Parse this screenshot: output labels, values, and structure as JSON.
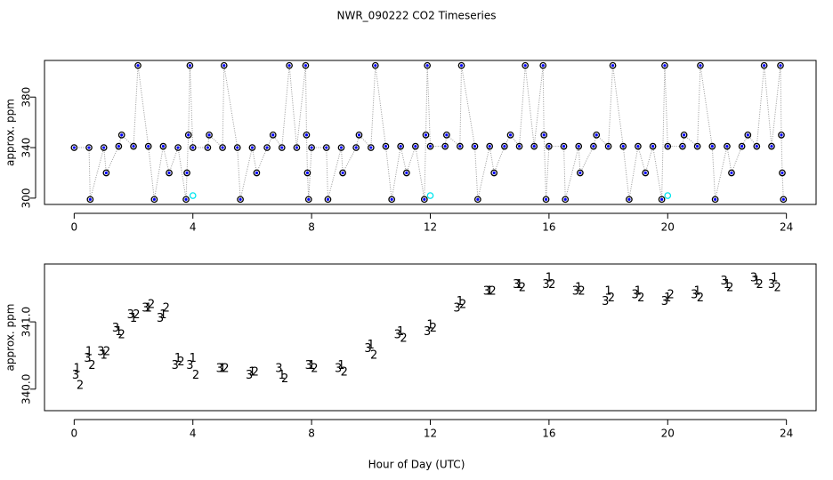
{
  "chart_data": [
    {
      "type": "scatter",
      "title": "NWR_090222  CO2 Timeseries",
      "ylabel": "approx. ppm",
      "xlim": [
        -1,
        25
      ],
      "ylim": [
        295,
        409
      ],
      "xticks": [
        0,
        4,
        8,
        12,
        16,
        20,
        24
      ],
      "yticks": [
        300,
        340,
        380
      ],
      "series": [
        {
          "color": "#000000",
          "fill": "#0000ff",
          "marker": "circle",
          "line": true,
          "x": [
            0,
            0.5,
            0.54,
            1,
            1.08,
            1.5,
            1.6,
            2,
            2.15,
            2.5,
            2.7,
            3,
            3.2,
            3.5,
            3.77,
            3.8,
            3.85,
            3.9,
            4,
            4.5,
            4.55,
            5,
            5.05,
            5.5,
            5.6,
            6,
            6.15,
            6.5,
            6.7,
            7,
            7.25,
            7.5,
            7.8,
            7.83,
            7.86,
            7.9,
            8,
            8.5,
            8.55,
            9,
            9.05,
            9.5,
            9.6,
            10,
            10.15,
            10.5,
            10.7,
            11,
            11.2,
            11.5,
            11.8,
            11.85,
            11.9,
            12,
            12.5,
            12.55,
            13,
            13.05,
            13.5,
            13.6,
            14,
            14.15,
            14.5,
            14.7,
            15,
            15.2,
            15.5,
            15.8,
            15.83,
            15.9,
            16,
            16.5,
            16.55,
            17,
            17.05,
            17.5,
            17.6,
            18,
            18.15,
            18.5,
            18.7,
            19,
            19.25,
            19.5,
            19.8,
            19.9,
            20,
            20.5,
            20.55,
            21,
            21.1,
            21.5,
            21.6,
            22,
            22.15,
            22.5,
            22.7,
            23,
            23.25,
            23.5,
            23.8,
            23.83,
            23.86,
            23.9
          ],
          "values": [
            340,
            340,
            299,
            340,
            320,
            341,
            350,
            341,
            405,
            341,
            299,
            341,
            320,
            340,
            299,
            320,
            350,
            405,
            340,
            340,
            350,
            340,
            405,
            340,
            299,
            340,
            320,
            340,
            350,
            340,
            405,
            340,
            405,
            350,
            320,
            299,
            340,
            340,
            299,
            340,
            320,
            340,
            350,
            340,
            405,
            341,
            299,
            341,
            320,
            341,
            299,
            350,
            405,
            341,
            341,
            350,
            341,
            405,
            341,
            299,
            341,
            320,
            341,
            350,
            341,
            405,
            341,
            405,
            350,
            299,
            341,
            341,
            299,
            341,
            320,
            341,
            350,
            341,
            405,
            341,
            299,
            341,
            320,
            341,
            299,
            405,
            341,
            341,
            350,
            341,
            405,
            341,
            299,
            341,
            320,
            341,
            350,
            341,
            405,
            341,
            405,
            350,
            320,
            299
          ]
        },
        {
          "color": "#00e5ee",
          "fill": "none",
          "marker": "circle",
          "line": false,
          "x": [
            4,
            12,
            20
          ],
          "values": [
            302,
            302,
            302
          ]
        }
      ]
    },
    {
      "type": "scatter",
      "ylabel": "approx. ppm",
      "xlabel": "Hour of Day (UTC)",
      "xlim": [
        -1,
        25
      ],
      "ylim": [
        339.68,
        341.86
      ],
      "xticks": [
        0,
        4,
        8,
        12,
        16,
        20,
        24
      ],
      "yticks": [
        {
          "value": 340,
          "label": "340.0"
        },
        {
          "value": 341,
          "label": "341.0"
        }
      ],
      "series": [
        {
          "name": "1",
          "color": "#ff0000",
          "marker": "name",
          "x": [
            0.1,
            0.5,
            1,
            1.5,
            2,
            2.5,
            3,
            3.5,
            4,
            5,
            6,
            7,
            8,
            9,
            10,
            11,
            12,
            13,
            14,
            15,
            16,
            17,
            18,
            19,
            20,
            21,
            22,
            23,
            23.6
          ],
          "values": [
            340.3,
            340.55,
            340.5,
            340.85,
            341.05,
            341.2,
            341.1,
            340.45,
            340.45,
            340.3,
            340.25,
            340.2,
            340.35,
            340.35,
            340.65,
            340.85,
            340.95,
            341.3,
            341.45,
            341.55,
            341.65,
            341.5,
            341.45,
            341.45,
            341.35,
            341.45,
            341.55,
            341.6,
            341.65
          ]
        },
        {
          "name": "2",
          "color": "#00cd00",
          "marker": "name",
          "x": [
            0.2,
            0.6,
            1.1,
            1.6,
            2.1,
            2.6,
            3.1,
            3.6,
            4.1,
            5.1,
            6.1,
            7.1,
            8.1,
            9.1,
            10.1,
            11.1,
            12.1,
            13.1,
            14.1,
            15.1,
            16.1,
            17.1,
            18.1,
            19.1,
            20.1,
            21.1,
            22.1,
            23.1,
            23.7
          ],
          "values": [
            340.05,
            340.35,
            340.55,
            340.8,
            341.1,
            341.25,
            341.2,
            340.4,
            340.2,
            340.3,
            340.25,
            340.15,
            340.3,
            340.25,
            340.5,
            340.75,
            340.9,
            341.25,
            341.45,
            341.5,
            341.55,
            341.45,
            341.35,
            341.35,
            341.4,
            341.35,
            341.5,
            341.55,
            341.5
          ]
        },
        {
          "name": "3",
          "color": "#0000ff",
          "marker": "name",
          "x": [
            0.05,
            0.45,
            0.9,
            1.4,
            1.9,
            2.4,
            2.9,
            3.4,
            3.9,
            4.9,
            5.9,
            6.9,
            7.9,
            8.9,
            9.9,
            10.9,
            11.9,
            12.9,
            13.9,
            14.9,
            15.9,
            16.9,
            17.9,
            18.9,
            19.9,
            20.9,
            21.9,
            22.9,
            23.5
          ],
          "values": [
            340.2,
            340.45,
            340.55,
            340.9,
            341.1,
            341.2,
            341.05,
            340.35,
            340.35,
            340.3,
            340.2,
            340.3,
            340.35,
            340.3,
            340.6,
            340.8,
            340.85,
            341.2,
            341.45,
            341.55,
            341.55,
            341.45,
            341.3,
            341.4,
            341.3,
            341.4,
            341.6,
            341.65,
            341.55
          ]
        }
      ]
    }
  ]
}
